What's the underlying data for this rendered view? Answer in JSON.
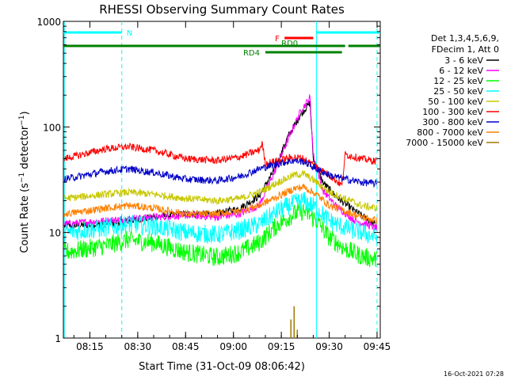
{
  "chart_data": {
    "type": "line",
    "title": "RHESSI Observing Summary Count Rates",
    "xlabel": "Start Time (31-Oct-09 08:06:42)",
    "ylabel": "Count Rate (s⁻¹ detector⁻¹)",
    "ylabel_main": "Count Rate (s",
    "ylabel_sup1": "−1",
    "ylabel_mid": " detector",
    "ylabel_sup2": "−1",
    "ylabel_close": ")",
    "yscale": "log",
    "ylim": [
      1,
      1000
    ],
    "xlim": [
      "08:06:42",
      "09:46:00"
    ],
    "x_ticks": [
      "08:15",
      "08:30",
      "08:45",
      "09:00",
      "09:15",
      "09:30",
      "09:45"
    ],
    "y_ticks": [
      "1",
      "10",
      "100",
      "1000"
    ],
    "legend_header": [
      "Det 1,3,4,5,6,9,",
      "FDecim 1, Att 0"
    ],
    "series": [
      {
        "name": "3 - 6 keV",
        "color": "#000000",
        "points": [
          [
            "08:07",
            11.5
          ],
          [
            "08:20",
            12
          ],
          [
            "08:35",
            14
          ],
          [
            "08:45",
            15
          ],
          [
            "08:55",
            15
          ],
          [
            "09:02",
            17
          ],
          [
            "09:08",
            22
          ],
          [
            "09:13",
            40
          ],
          [
            "09:17",
            80
          ],
          [
            "09:21",
            130
          ],
          [
            "09:24",
            170
          ],
          [
            "09:25",
            50
          ],
          [
            "09:28",
            30
          ],
          [
            "09:32",
            22
          ],
          [
            "09:38",
            16
          ],
          [
            "09:45",
            11.5
          ]
        ]
      },
      {
        "name": "6 - 12 keV",
        "color": "#ff00ff",
        "points": [
          [
            "08:07",
            12
          ],
          [
            "08:20",
            13
          ],
          [
            "08:35",
            14
          ],
          [
            "08:45",
            14.5
          ],
          [
            "08:55",
            14
          ],
          [
            "09:02",
            15
          ],
          [
            "09:08",
            18
          ],
          [
            "09:13",
            38
          ],
          [
            "09:17",
            75
          ],
          [
            "09:21",
            140
          ],
          [
            "09:24",
            190
          ],
          [
            "09:25",
            55
          ],
          [
            "09:28",
            25
          ],
          [
            "09:32",
            18
          ],
          [
            "09:38",
            13
          ],
          [
            "09:45",
            11
          ]
        ]
      },
      {
        "name": "12 - 25 keV",
        "color": "#00ff00",
        "points": [
          [
            "08:07",
            6.5
          ],
          [
            "08:20",
            7.5
          ],
          [
            "08:27",
            8.5
          ],
          [
            "08:35",
            8
          ],
          [
            "08:45",
            6.5
          ],
          [
            "08:55",
            5.8
          ],
          [
            "09:02",
            6.5
          ],
          [
            "09:08",
            8
          ],
          [
            "09:14",
            12
          ],
          [
            "09:19",
            15
          ],
          [
            "09:22",
            16
          ],
          [
            "09:26",
            13
          ],
          [
            "09:30",
            9
          ],
          [
            "09:35",
            7
          ],
          [
            "09:40",
            6
          ],
          [
            "09:45",
            5.5
          ]
        ]
      },
      {
        "name": "25 - 50 keV",
        "color": "#00ffff",
        "points": [
          [
            "08:07",
            10
          ],
          [
            "08:20",
            11
          ],
          [
            "08:27",
            12
          ],
          [
            "08:35",
            11.5
          ],
          [
            "08:45",
            10
          ],
          [
            "08:55",
            9.5
          ],
          [
            "09:02",
            10.5
          ],
          [
            "09:08",
            12
          ],
          [
            "09:14",
            16
          ],
          [
            "09:19",
            19
          ],
          [
            "09:22",
            20
          ],
          [
            "09:26",
            17
          ],
          [
            "09:30",
            13
          ],
          [
            "09:35",
            11
          ],
          [
            "09:40",
            10
          ],
          [
            "09:45",
            9
          ]
        ]
      },
      {
        "name": "50 - 100 keV",
        "color": "#c8c800",
        "points": [
          [
            "08:07",
            21
          ],
          [
            "08:20",
            23
          ],
          [
            "08:27",
            24
          ],
          [
            "08:35",
            23
          ],
          [
            "08:45",
            21
          ],
          [
            "08:55",
            20
          ],
          [
            "09:02",
            21
          ],
          [
            "09:08",
            24
          ],
          [
            "09:14",
            30
          ],
          [
            "09:19",
            35
          ],
          [
            "09:22",
            36
          ],
          [
            "09:26",
            30
          ],
          [
            "09:30",
            24
          ],
          [
            "09:35",
            21
          ],
          [
            "09:40",
            18
          ],
          [
            "09:45",
            17
          ]
        ]
      },
      {
        "name": "100 - 300 keV",
        "color": "#ff0000",
        "points": [
          [
            "08:07",
            50
          ],
          [
            "08:20",
            62
          ],
          [
            "08:27",
            65
          ],
          [
            "08:35",
            60
          ],
          [
            "08:45",
            50
          ],
          [
            "08:55",
            48
          ],
          [
            "09:02",
            52
          ],
          [
            "09:08",
            60
          ],
          [
            "09:09",
            70
          ],
          [
            "09:10",
            45
          ],
          [
            "09:14",
            48
          ],
          [
            "09:19",
            52
          ],
          [
            "09:22",
            50
          ],
          [
            "09:26",
            42
          ],
          [
            "09:30",
            35
          ],
          [
            "09:34",
            28
          ],
          [
            "09:35",
            55
          ],
          [
            "09:40",
            50
          ],
          [
            "09:45",
            47
          ]
        ]
      },
      {
        "name": "300 - 800 keV",
        "color": "#0000c8",
        "points": [
          [
            "08:07",
            32
          ],
          [
            "08:20",
            38
          ],
          [
            "08:27",
            40
          ],
          [
            "08:35",
            37
          ],
          [
            "08:45",
            32
          ],
          [
            "08:55",
            31
          ],
          [
            "09:02",
            34
          ],
          [
            "09:08",
            40
          ],
          [
            "09:14",
            45
          ],
          [
            "09:19",
            48
          ],
          [
            "09:22",
            47
          ],
          [
            "09:26",
            40
          ],
          [
            "09:30",
            35
          ],
          [
            "09:35",
            32
          ],
          [
            "09:40",
            30
          ],
          [
            "09:45",
            29
          ]
        ]
      },
      {
        "name": "800 - 7000 keV",
        "color": "#ff8000",
        "points": [
          [
            "08:07",
            15
          ],
          [
            "08:20",
            17
          ],
          [
            "08:27",
            18
          ],
          [
            "08:35",
            17
          ],
          [
            "08:45",
            15
          ],
          [
            "08:55",
            15
          ],
          [
            "09:02",
            16
          ],
          [
            "09:08",
            18
          ],
          [
            "09:14",
            22
          ],
          [
            "09:19",
            26
          ],
          [
            "09:22",
            27
          ],
          [
            "09:26",
            23
          ],
          [
            "09:30",
            18
          ],
          [
            "09:35",
            16
          ],
          [
            "09:40",
            14
          ],
          [
            "09:45",
            13
          ]
        ]
      },
      {
        "name": "7000 - 15000 keV",
        "color": "#a07800",
        "points": [
          [
            "09:18",
            1.5
          ],
          [
            "09:19",
            2
          ],
          [
            "09:20",
            1.2
          ]
        ]
      }
    ],
    "annotations": [
      {
        "label": "N",
        "color": "#00ffff",
        "segments": [
          [
            "08:06:42",
            "08:25"
          ],
          [
            "09:26",
            "09:46"
          ]
        ]
      },
      {
        "label": "F",
        "color": "#ff0000",
        "segments": [
          [
            "09:16",
            "09:25"
          ]
        ]
      },
      {
        "label": "RD0",
        "color": "#008000",
        "segments": [
          [
            "08:06:42",
            "09:35"
          ],
          [
            "09:36",
            "09:46"
          ]
        ]
      },
      {
        "label": "RD4",
        "color": "#008000",
        "segments": [
          [
            "09:10",
            "09:34"
          ]
        ]
      }
    ],
    "vertical_lines": [
      {
        "x": "08:07",
        "color": "#00ffff",
        "style": "solid"
      },
      {
        "x": "08:25",
        "color": "#00ffff",
        "style": "dashed"
      },
      {
        "x": "09:26",
        "color": "#00ffff",
        "style": "solid"
      },
      {
        "x": "09:45",
        "color": "#00ffff",
        "style": "dashed"
      }
    ],
    "timestamp": "16-Oct-2021 07:28"
  }
}
